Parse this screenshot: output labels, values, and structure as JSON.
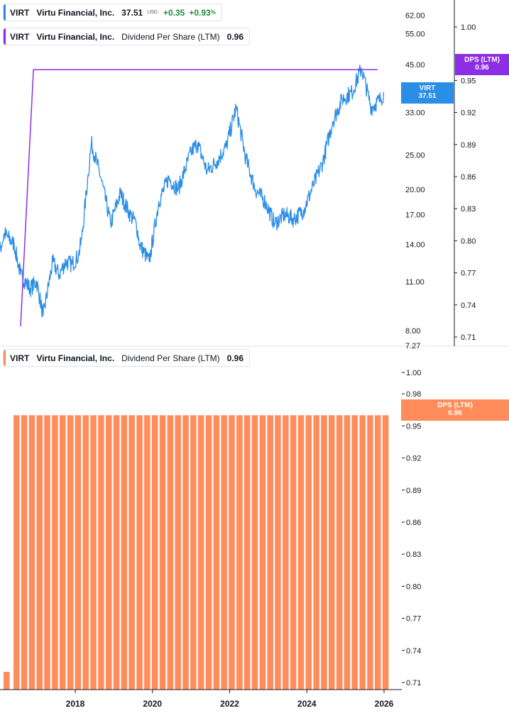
{
  "legends": {
    "price": {
      "symbol": "VIRT",
      "name": "Virtu Financial, Inc.",
      "value": "37.51",
      "currency": "USD",
      "change": "+0.35",
      "change_pct": "+0.93",
      "pct_sign": "%"
    },
    "dps_top": {
      "symbol": "VIRT",
      "name": "Virtu Financial, Inc.",
      "metric": "Dividend Per Share (LTM)",
      "value": "0.96"
    },
    "dps_bottom": {
      "symbol": "VIRT",
      "name": "Virtu Financial, Inc.",
      "metric": "Dividend Per Share (LTM)",
      "value": "0.96"
    }
  },
  "tags": {
    "virt": {
      "label": "VIRT",
      "value": "37.51"
    },
    "dps_top": {
      "label": "DPS (LTM)",
      "value": "0.96"
    },
    "dps_bottom": {
      "label": "DPS (LTM)",
      "value": "0.96"
    }
  },
  "colors": {
    "price": "#2a8de6",
    "dps_line": "#8d2ee6",
    "dps_bar": "#ff8c5a",
    "axis": "#9598a1",
    "text": "#131722"
  },
  "chart_data": [
    {
      "type": "line",
      "name": "VIRT price",
      "y_scale": "log",
      "y_ticks": [
        62.0,
        55.0,
        45.0,
        33.0,
        25.0,
        20.0,
        17.0,
        14.0,
        11.0,
        8.0
      ],
      "y_tick_labels": [
        "62.00",
        "55.00",
        "45.00",
        "33.00",
        "25.00",
        "20.00",
        "17.00",
        "14.00",
        "11.00",
        "8.00"
      ],
      "ylim_label": "7.27",
      "points": [
        [
          "2015-06",
          14.0
        ],
        [
          "2015-09",
          13.5
        ],
        [
          "2015-12",
          12.0
        ],
        [
          "2016-03",
          15.0
        ],
        [
          "2016-06",
          14.0
        ],
        [
          "2016-08",
          11.5
        ],
        [
          "2016-11",
          10.5
        ],
        [
          "2017-01",
          11.0
        ],
        [
          "2017-03",
          8.8
        ],
        [
          "2017-06",
          12.5
        ],
        [
          "2017-08",
          11.5
        ],
        [
          "2017-10",
          12.5
        ],
        [
          "2017-12",
          12.3
        ],
        [
          "2018-02",
          13.0
        ],
        [
          "2018-03",
          14.5
        ],
        [
          "2018-05",
          22.0
        ],
        [
          "2018-06",
          27.0
        ],
        [
          "2018-09",
          21.5
        ],
        [
          "2018-12",
          16.0
        ],
        [
          "2019-03",
          19.5
        ],
        [
          "2019-06",
          17.0
        ],
        [
          "2019-08",
          16.0
        ],
        [
          "2019-09",
          14.0
        ],
        [
          "2019-12",
          12.5
        ],
        [
          "2020-03",
          18.5
        ],
        [
          "2020-06",
          21.5
        ],
        [
          "2020-09",
          20.0
        ],
        [
          "2021-01",
          25.5
        ],
        [
          "2021-03",
          27.0
        ],
        [
          "2021-06",
          22.5
        ],
        [
          "2021-09",
          24.0
        ],
        [
          "2021-12",
          26.5
        ],
        [
          "2022-03",
          34.0
        ],
        [
          "2022-06",
          24.5
        ],
        [
          "2022-09",
          20.0
        ],
        [
          "2022-12",
          18.5
        ],
        [
          "2023-03",
          16.0
        ],
        [
          "2023-06",
          17.0
        ],
        [
          "2023-09",
          16.5
        ],
        [
          "2023-12",
          17.5
        ],
        [
          "2024-03",
          20.5
        ],
        [
          "2024-06",
          24.0
        ],
        [
          "2024-09",
          31.0
        ],
        [
          "2024-12",
          36.0
        ],
        [
          "2025-03",
          37.5
        ],
        [
          "2025-06",
          44.0
        ],
        [
          "2025-09",
          34.0
        ],
        [
          "2025-12",
          36.0
        ],
        [
          "2026-01",
          37.51
        ]
      ]
    },
    {
      "type": "line",
      "name": "DPS (LTM) line",
      "y_ticks": [
        1.0,
        0.95,
        0.92,
        0.89,
        0.86,
        0.83,
        0.8,
        0.77,
        0.74,
        0.71
      ],
      "y_tick_labels": [
        "1.00",
        "0.95",
        "0.92",
        "0.89",
        "0.86",
        "0.83",
        "0.80",
        "0.77",
        "0.74",
        "0.71"
      ],
      "points": [
        [
          "2016-08",
          0.72
        ],
        [
          "2016-12",
          0.96
        ],
        [
          "2025-11",
          0.96
        ]
      ]
    },
    {
      "type": "bar",
      "name": "DPS (LTM) bars",
      "y_ticks": [
        1.0,
        0.98,
        0.95,
        0.92,
        0.89,
        0.86,
        0.83,
        0.8,
        0.77,
        0.74,
        0.71
      ],
      "y_tick_labels": [
        "1.00",
        "0.98",
        "0.95",
        "0.92",
        "0.89",
        "0.86",
        "0.83",
        "0.80",
        "0.77",
        "0.74",
        "0.71"
      ],
      "ylim": [
        0.7,
        1.0
      ],
      "first_bar": 0.72,
      "bar_value": 0.96,
      "bar_count": 49
    }
  ],
  "x_axis": {
    "tick_labels": [
      "2018",
      "2020",
      "2022",
      "2024",
      "2026"
    ]
  }
}
